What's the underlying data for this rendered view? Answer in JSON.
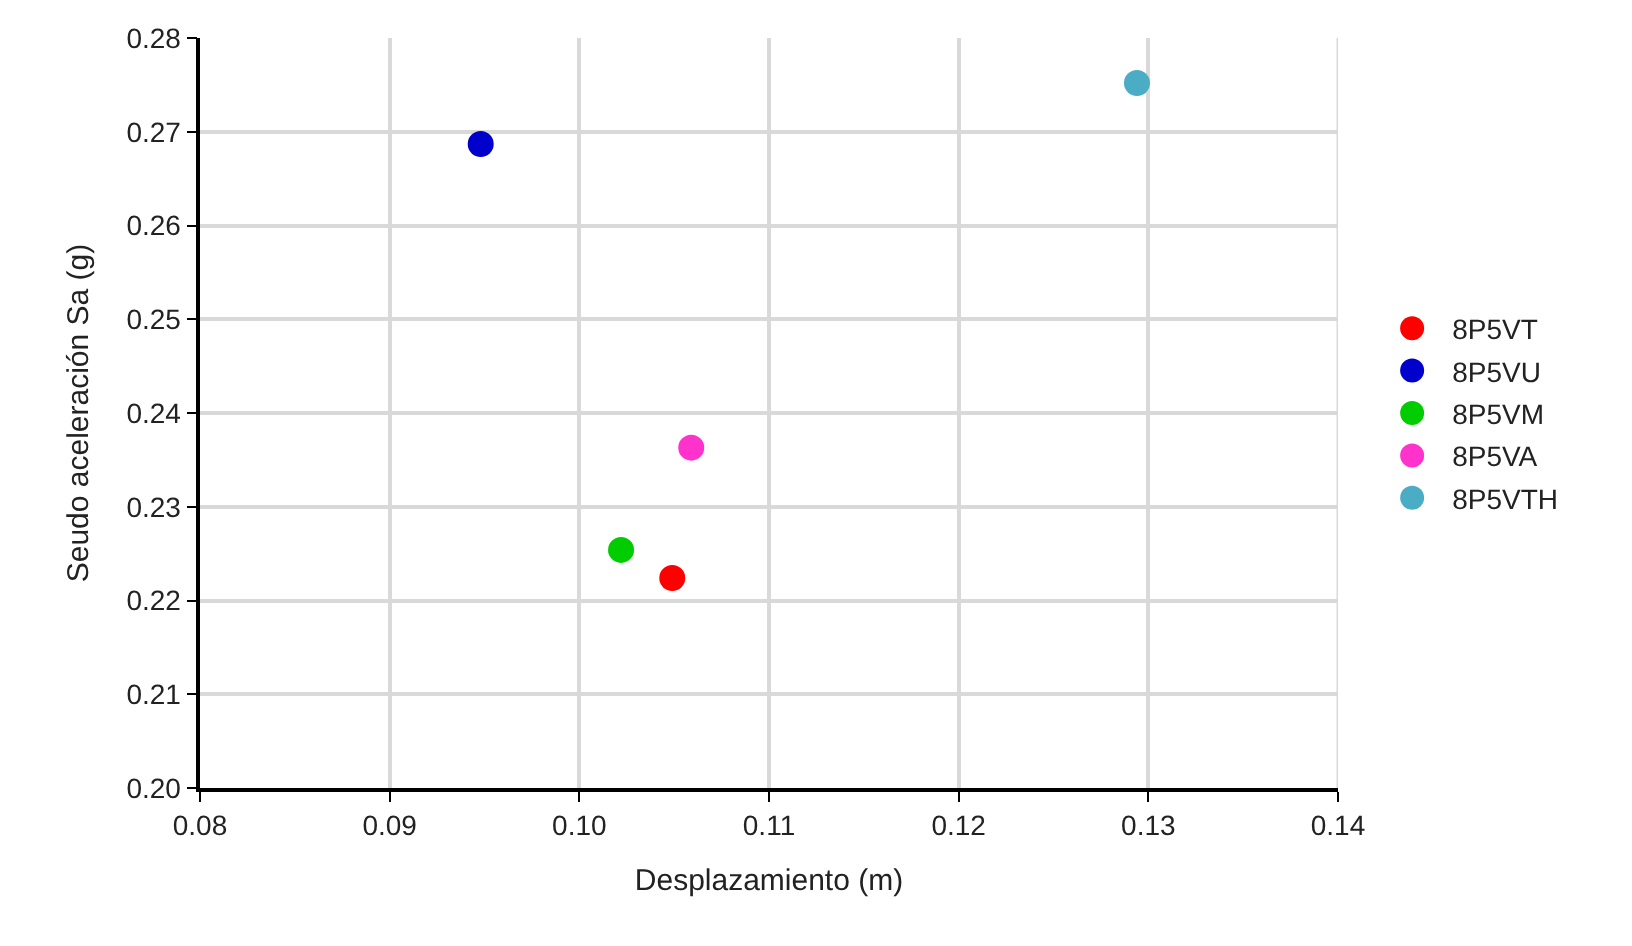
{
  "chart_data": {
    "type": "scatter",
    "xlabel": "Desplazamiento (m)",
    "ylabel": "Seudo aceleración Sa (g)",
    "series": [
      {
        "name": "8P5VT",
        "color": "#ff0000",
        "x": [
          0.1049
        ],
        "values": [
          0.2224
        ]
      },
      {
        "name": "8P5VU",
        "color": "#0000cc",
        "x": [
          0.0948
        ],
        "values": [
          0.2687
        ]
      },
      {
        "name": "8P5VM",
        "color": "#00cc00",
        "x": [
          0.1022
        ],
        "values": [
          0.2254
        ]
      },
      {
        "name": "8P5VA",
        "color": "#ff33cc",
        "x": [
          0.1059
        ],
        "values": [
          0.2363
        ]
      },
      {
        "name": "8P5VTH",
        "color": "#4bacc6",
        "x": [
          0.1294
        ],
        "values": [
          0.2752
        ]
      }
    ],
    "xlim": [
      0.08,
      0.14
    ],
    "xticks": [
      {
        "value": 0.08,
        "label": "0.08"
      },
      {
        "value": 0.09,
        "label": "0.09"
      },
      {
        "value": 0.1,
        "label": "0.10"
      },
      {
        "value": 0.11,
        "label": "0.11"
      },
      {
        "value": 0.12,
        "label": "0.12"
      },
      {
        "value": 0.13,
        "label": "0.13"
      },
      {
        "value": 0.14,
        "label": "0.14"
      }
    ],
    "ylim": [
      0.2,
      0.28
    ],
    "yticks": [
      {
        "value": 0.2,
        "label": "0.20"
      },
      0.21,
      0.22,
      0.23,
      0.24,
      0.25,
      0.26,
      0.27,
      0.28
    ],
    "grid": true,
    "legend": "right",
    "marker": "circle"
  }
}
